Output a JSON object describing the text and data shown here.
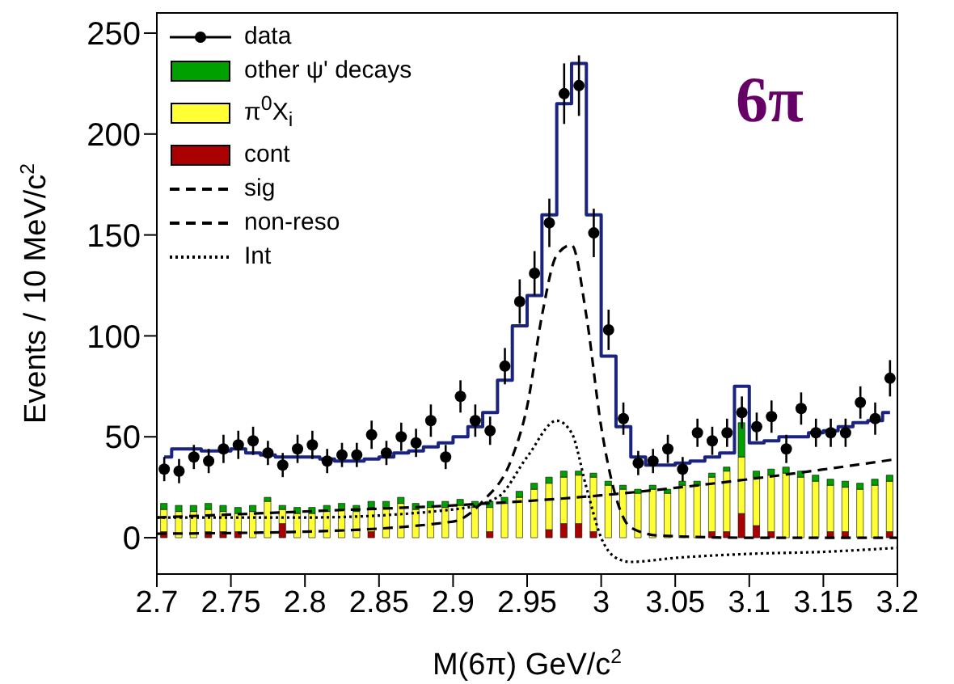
{
  "chart_data": {
    "type": "bar",
    "stacked": true,
    "xlabel": "M(6π) GeV/c$^{2}$",
    "ylabel": "Events / 10 MeV/c$^{2}$",
    "xlim": [
      2.7,
      3.2
    ],
    "xticks": [
      2.7,
      2.75,
      2.8,
      2.85,
      2.9,
      2.95,
      3,
      3.05,
      3.1,
      3.15,
      3.2
    ],
    "ylim": [
      -18,
      260
    ],
    "yticks": [
      0,
      50,
      100,
      150,
      200,
      250
    ],
    "legend": "top left",
    "annotations": [
      "6π"
    ],
    "x": [
      2.705,
      2.715,
      2.725,
      2.735,
      2.745,
      2.755,
      2.765,
      2.775,
      2.785,
      2.795,
      2.805,
      2.815,
      2.825,
      2.835,
      2.845,
      2.855,
      2.865,
      2.875,
      2.885,
      2.895,
      2.905,
      2.915,
      2.925,
      2.935,
      2.945,
      2.955,
      2.965,
      2.975,
      2.985,
      2.995,
      3.005,
      3.015,
      3.025,
      3.035,
      3.045,
      3.055,
      3.065,
      3.075,
      3.085,
      3.095,
      3.105,
      3.115,
      3.125,
      3.135,
      3.145,
      3.155,
      3.165,
      3.175,
      3.185,
      3.195
    ],
    "series": [
      {
        "name": "data",
        "type": "scatter",
        "marker": "circle",
        "color": "#000000",
        "values": [
          34,
          33,
          40,
          38,
          44,
          46,
          48,
          42,
          36,
          44,
          46,
          38,
          41,
          41,
          51,
          42,
          50,
          47,
          58,
          40,
          70,
          58,
          53,
          85,
          117,
          131,
          156,
          220,
          224,
          151,
          103,
          59,
          37,
          38,
          44,
          34,
          52,
          48,
          52,
          62,
          55,
          60,
          44,
          64,
          52,
          52,
          52,
          67,
          59,
          79
        ],
        "errors": [
          6,
          6,
          6,
          6,
          7,
          7,
          7,
          6,
          6,
          7,
          7,
          6,
          6,
          6,
          7,
          6,
          7,
          7,
          8,
          6,
          8,
          8,
          7,
          9,
          11,
          11,
          12,
          15,
          15,
          12,
          10,
          8,
          6,
          6,
          7,
          6,
          7,
          7,
          7,
          8,
          7,
          8,
          7,
          8,
          7,
          7,
          7,
          8,
          8,
          9
        ]
      },
      {
        "name": "cont",
        "color": "#aa0000",
        "values": [
          3,
          0,
          0,
          3,
          3,
          3,
          0,
          0,
          7,
          0,
          0,
          0,
          0,
          0,
          3,
          0,
          0,
          0,
          0,
          0,
          0,
          0,
          3,
          0,
          0,
          0,
          4,
          7,
          7,
          3,
          0,
          0,
          0,
          0,
          0,
          0,
          0,
          3,
          3,
          12,
          6,
          3,
          0,
          0,
          0,
          3,
          3,
          0,
          0,
          3
        ]
      },
      {
        "name": "π$^{0}$X$_{i}$",
        "color": "#ffff33",
        "values": [
          11,
          13,
          13,
          11,
          10,
          9,
          13,
          18,
          7,
          12,
          12,
          13,
          14,
          13,
          12,
          15,
          17,
          14,
          15,
          15,
          16,
          15,
          12,
          17,
          20,
          24,
          23,
          23,
          24,
          27,
          26,
          24,
          22,
          24,
          22,
          26,
          26,
          27,
          30,
          28,
          24,
          28,
          32,
          30,
          28,
          23,
          22,
          24,
          26,
          25
        ]
      },
      {
        "name": "other ψ' decays",
        "color": "#00a000",
        "values": [
          3,
          3,
          3,
          3,
          3,
          3,
          3,
          2,
          2,
          3,
          3,
          3,
          3,
          3,
          3,
          3,
          3,
          3,
          3,
          3,
          3,
          3,
          3,
          3,
          3,
          3,
          3,
          3,
          2,
          2,
          2,
          2,
          2,
          2,
          2,
          2,
          2,
          2,
          2,
          17,
          3,
          3,
          3,
          3,
          3,
          3,
          3,
          3,
          3,
          3
        ]
      },
      {
        "type": "step",
        "color": "#1a237e",
        "values": [
          40,
          44,
          44,
          43,
          43,
          44,
          42,
          41,
          40,
          40,
          40,
          39,
          38,
          38,
          39,
          40,
          42,
          43,
          45,
          47,
          50,
          55,
          62,
          78,
          105,
          120,
          160,
          215,
          235,
          160,
          90,
          55,
          40,
          36,
          36,
          37,
          38,
          40,
          42,
          75,
          47,
          48,
          50,
          50,
          52,
          53,
          55,
          57,
          58,
          62
        ]
      },
      {
        "name": "sig",
        "type": "line",
        "line_style": "dashed",
        "color": "#000000",
        "x": [
          2.7,
          2.8,
          2.9,
          2.92,
          2.94,
          2.95,
          2.96,
          2.97,
          2.98,
          2.99,
          3.0,
          3.01,
          3.02,
          3.04,
          3.1,
          3.2
        ],
        "values": [
          2,
          3,
          8,
          18,
          40,
          65,
          110,
          140,
          145,
          110,
          55,
          20,
          5,
          1,
          0,
          0
        ]
      },
      {
        "name": "non-reso",
        "type": "line",
        "line_style": "dashed",
        "color": "#000000",
        "x": [
          2.7,
          2.8,
          2.9,
          3.0,
          3.1,
          3.2
        ],
        "values": [
          10,
          13,
          16,
          21,
          29,
          39
        ]
      },
      {
        "name": "Int",
        "type": "line",
        "line_style": "dotted",
        "color": "#000000",
        "x": [
          2.7,
          2.8,
          2.9,
          2.93,
          2.95,
          2.97,
          2.98,
          2.99,
          3.0,
          3.01,
          3.02,
          3.05,
          3.1,
          3.15,
          3.2
        ],
        "values": [
          10,
          10,
          14,
          20,
          40,
          58,
          52,
          25,
          0,
          -10,
          -12,
          -10,
          -8,
          -7,
          -5
        ]
      }
    ]
  }
}
